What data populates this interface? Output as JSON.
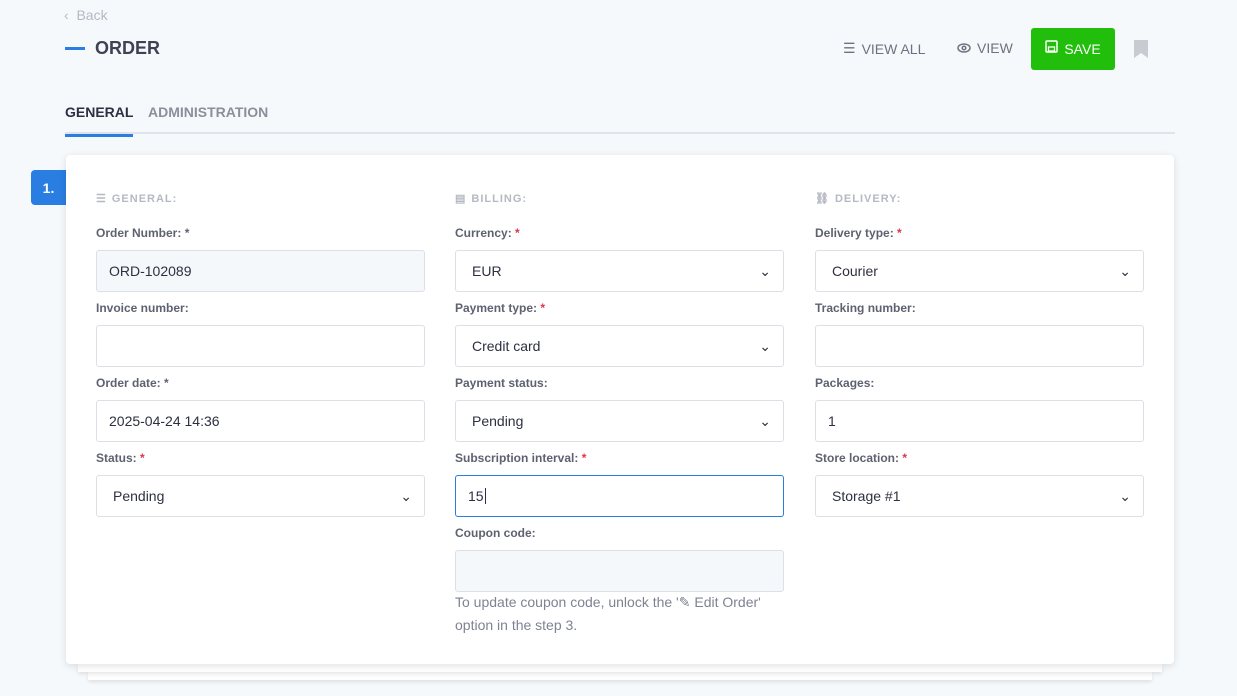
{
  "header": {
    "back": "Back",
    "title": "ORDER",
    "view_all": "VIEW ALL",
    "view": "VIEW",
    "save": "SAVE"
  },
  "tabs": [
    {
      "label": "GENERAL",
      "active": true
    },
    {
      "label": "ADMINISTRATION",
      "active": false
    }
  ],
  "step": "1.",
  "colors": {
    "accent": "#2a7de1",
    "save": "#21bf0b",
    "required": "#e0334d"
  },
  "general": {
    "heading": "GENERAL:",
    "order_number_label": "Order Number:",
    "order_number": "ORD-102089",
    "invoice_label": "Invoice number:",
    "invoice": "",
    "order_date_label": "Order date:",
    "order_date": "2025-04-24 14:36",
    "status_label": "Status:",
    "status": "Pending"
  },
  "billing": {
    "heading": "BILLING:",
    "currency_label": "Currency:",
    "currency": "EUR",
    "payment_type_label": "Payment type:",
    "payment_type": "Credit card",
    "payment_status_label": "Payment status:",
    "payment_status": "Pending",
    "subscription_label": "Subscription interval:",
    "subscription": "15",
    "coupon_label": "Coupon code:",
    "coupon": "",
    "help_pre": "To update coupon code, unlock the '",
    "help_link": "Edit Order",
    "help_post": "' option in the step 3."
  },
  "delivery": {
    "heading": "DELIVERY:",
    "type_label": "Delivery type:",
    "type": "Courier",
    "tracking_label": "Tracking number:",
    "tracking": "",
    "packages_label": "Packages:",
    "packages": "1",
    "store_label": "Store location:",
    "store": "Storage #1"
  },
  "required_mark": "*"
}
